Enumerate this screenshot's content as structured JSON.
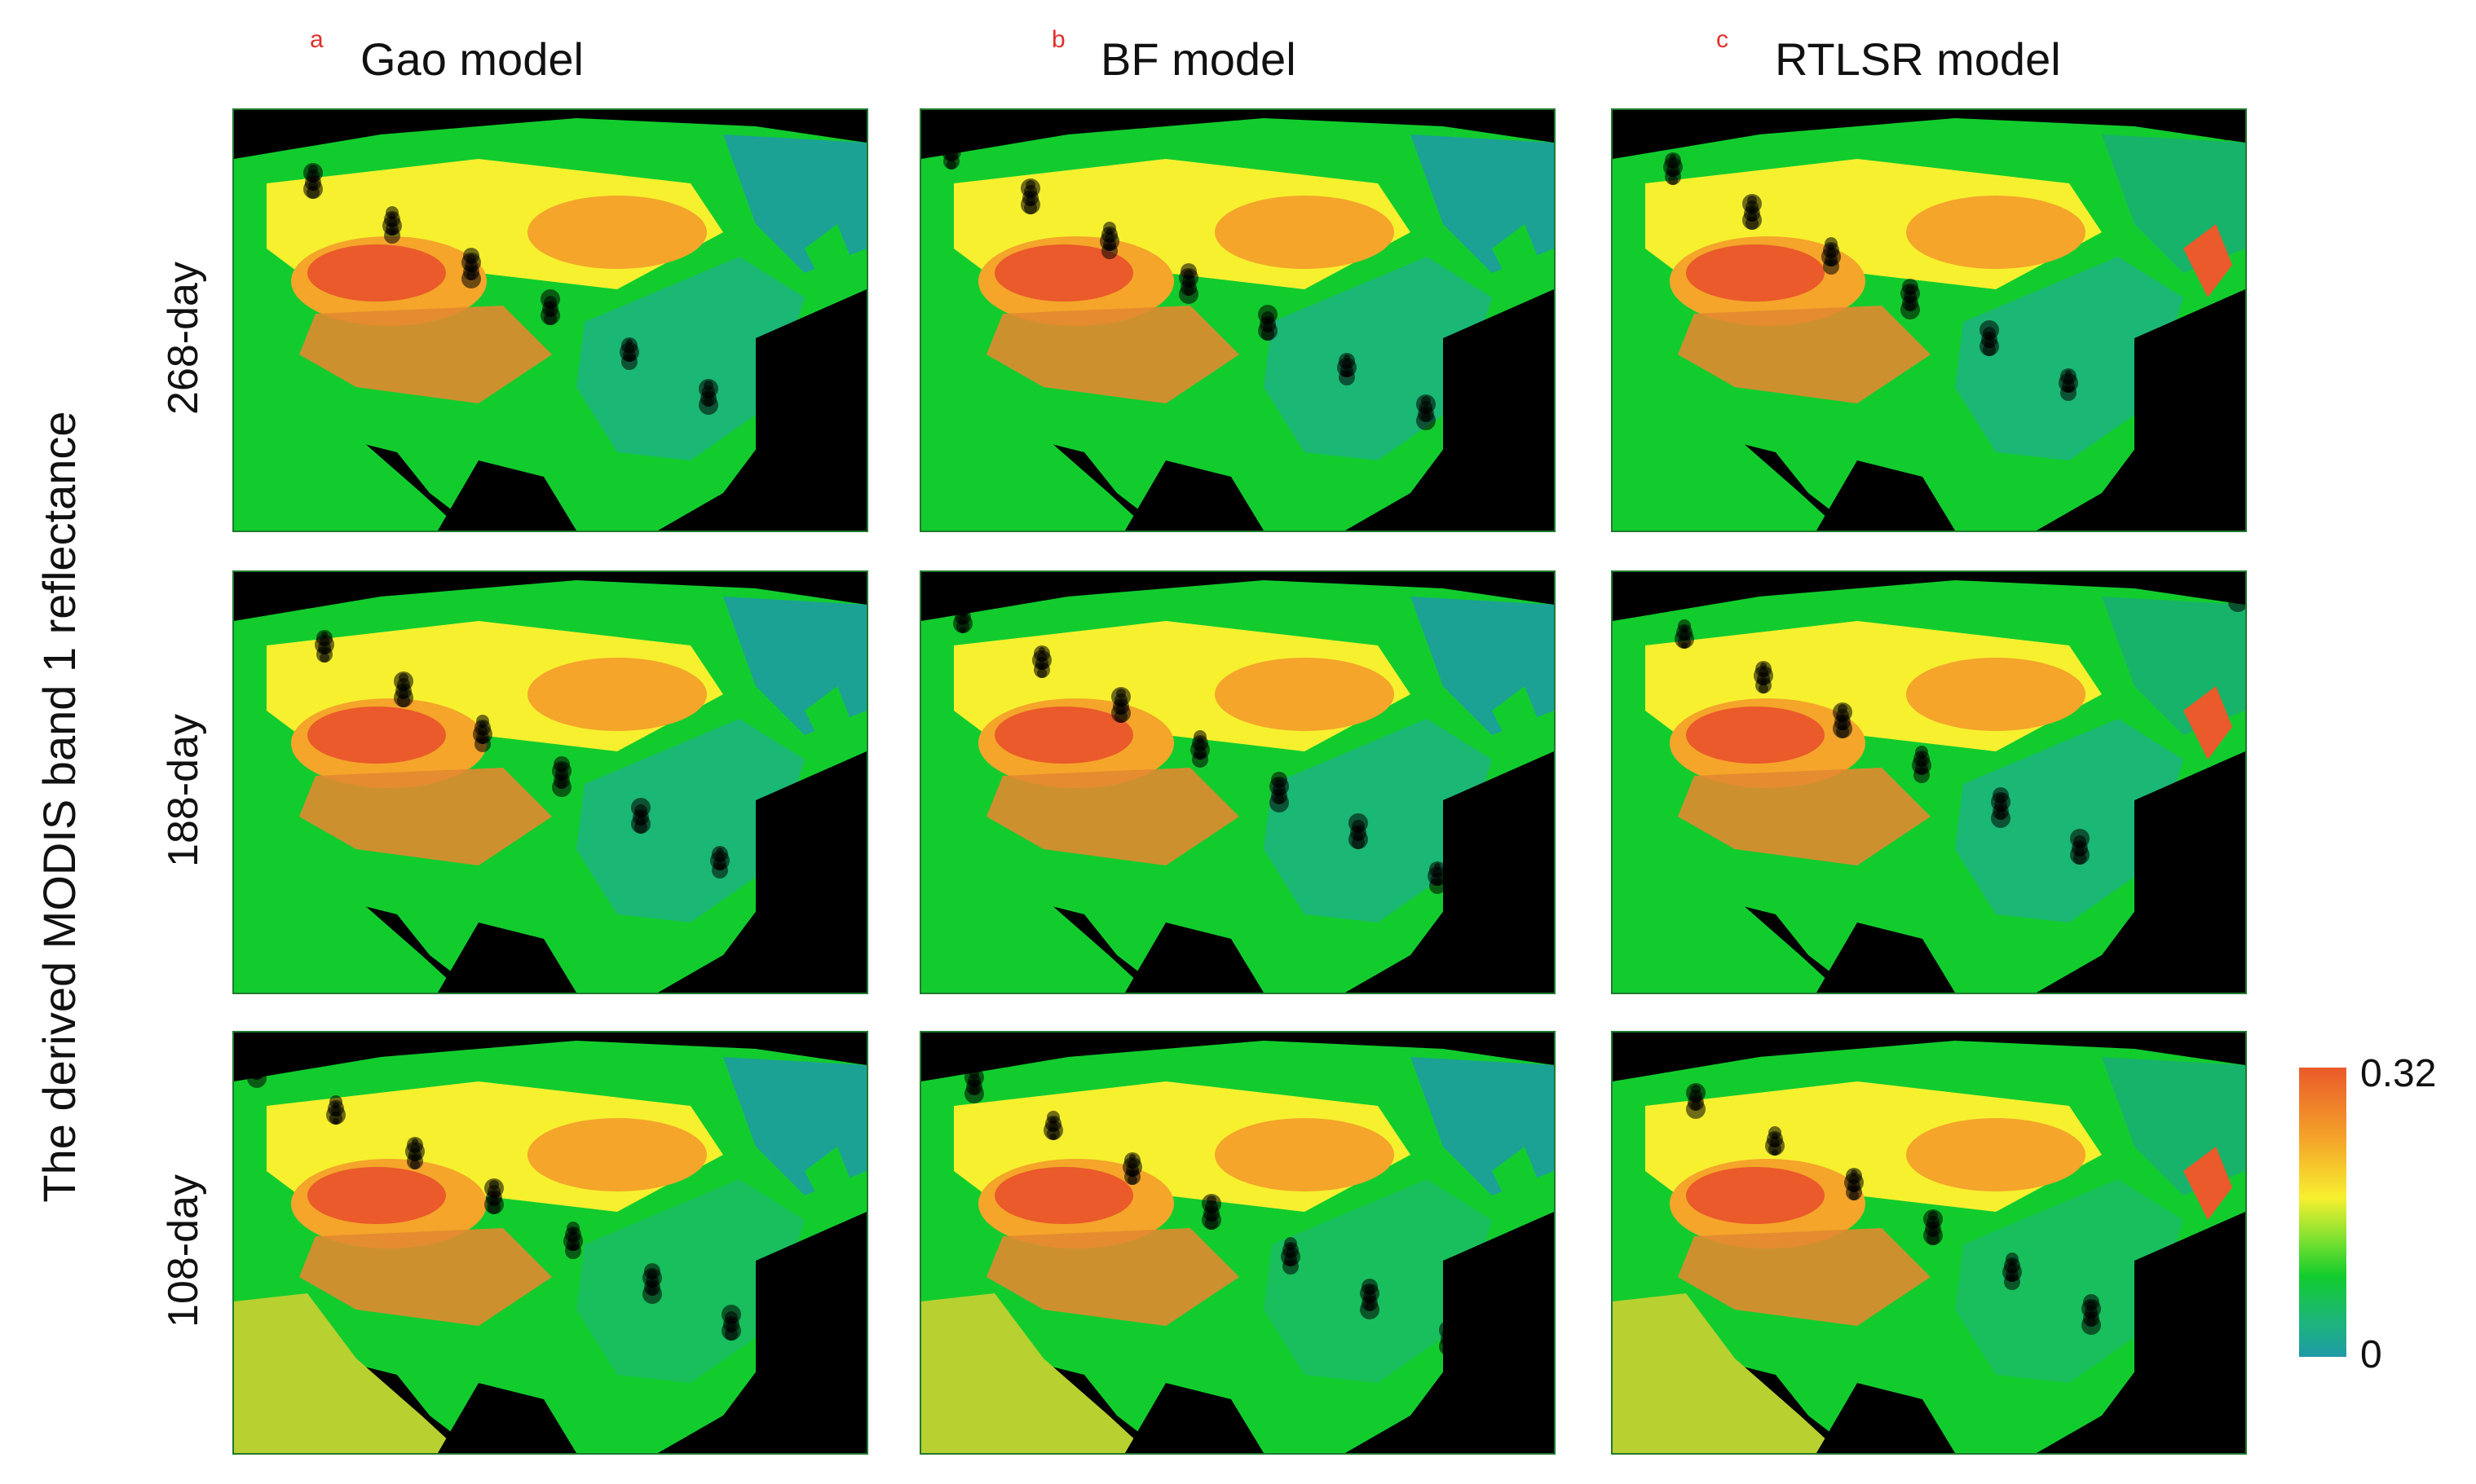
{
  "figure": {
    "y_axis_label": "The derived MODIS band 1 reflectance",
    "columns": [
      {
        "letter": "a",
        "title": "Gao model"
      },
      {
        "letter": "b",
        "title": "BF model"
      },
      {
        "letter": "c",
        "title": "RTLSR model"
      }
    ],
    "rows": [
      {
        "label": "268-day"
      },
      {
        "label": "188-day"
      },
      {
        "label": "108-day"
      }
    ],
    "colorbar": {
      "max_label": "0.32",
      "min_label": "0",
      "colors": [
        "#ea5a2a",
        "#f4a52a",
        "#f7f02f",
        "#78e030",
        "#12cc2e",
        "#1db57c",
        "#1e9aa6"
      ]
    },
    "colors": {
      "background": "#000000",
      "low": "#1e9aa6",
      "mid_low": "#1db57c",
      "mid": "#12cc2e",
      "mid_high": "#f7f02f",
      "high": "#ea5a2a"
    }
  }
}
